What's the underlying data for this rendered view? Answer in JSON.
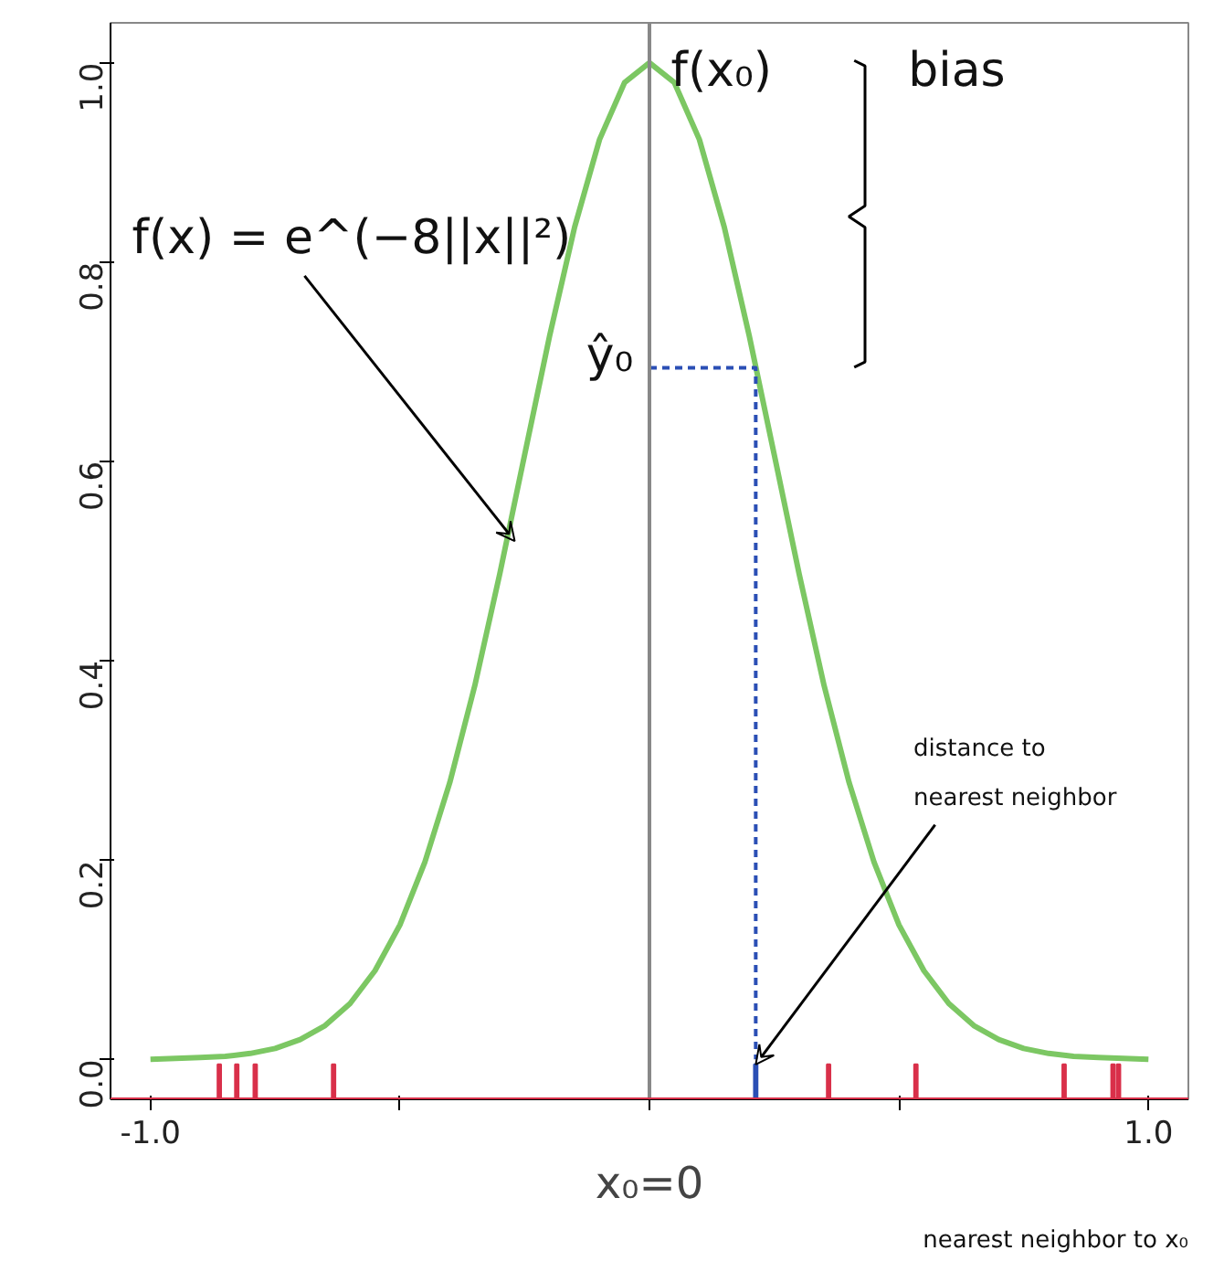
{
  "chart_data": {
    "type": "line",
    "xlabel": "x₀=0",
    "xlim": [
      -1.08,
      1.08
    ],
    "ylim": [
      -0.04,
      1.04
    ],
    "xticks": [
      {
        "value": -1,
        "label": "-1.0"
      },
      {
        "value": -0.5,
        "label": null
      },
      {
        "value": 0,
        "label": null
      },
      {
        "value": 0.5,
        "label": null
      },
      {
        "value": 1,
        "label": "1.0"
      }
    ],
    "yticks": [
      {
        "value": 0,
        "label": "0.0"
      },
      {
        "value": 0.2,
        "label": "0.2"
      },
      {
        "value": 0.4,
        "label": "0.4"
      },
      {
        "value": 0.6,
        "label": "0.6"
      },
      {
        "value": 0.8,
        "label": "0.8"
      },
      {
        "value": 1,
        "label": "1.0"
      }
    ],
    "grid": false,
    "series": [
      {
        "color": "#7cc763",
        "x": [
          -1,
          -0.95,
          -0.9,
          -0.85,
          -0.8,
          -0.75,
          -0.7,
          -0.65,
          -0.6,
          -0.55,
          -0.5,
          -0.45,
          -0.4,
          -0.35,
          -0.3,
          -0.25,
          -0.2,
          -0.15,
          -0.1,
          -0.05,
          0,
          0.05,
          0.1,
          0.15,
          0.2,
          0.25,
          0.3,
          0.35,
          0.4,
          0.45,
          0.5,
          0.55,
          0.6,
          0.65,
          0.7,
          0.75,
          0.8,
          0.85,
          0.9,
          0.95,
          1
        ],
        "values": [
          0.0,
          0.001,
          0.002,
          0.003,
          0.006,
          0.011,
          0.02,
          0.034,
          0.056,
          0.089,
          0.135,
          0.198,
          0.278,
          0.375,
          0.487,
          0.607,
          0.726,
          0.835,
          0.923,
          0.98,
          1.0,
          0.98,
          0.923,
          0.835,
          0.726,
          0.607,
          0.487,
          0.375,
          0.278,
          0.198,
          0.135,
          0.089,
          0.056,
          0.034,
          0.02,
          0.011,
          0.006,
          0.003,
          0.002,
          0.001,
          0.0
        ]
      },
      {
        "type": "line",
        "line_style": "dashed",
        "color": "#2b4fb5",
        "x": [
          0,
          0.213,
          0.213
        ],
        "values": [
          0.694,
          0.694,
          0.0
        ]
      },
      {
        "type": "bar",
        "color": "#d9304a",
        "colors": [
          "#d9304a",
          "#d9304a",
          "#d9304a",
          "#d9304a",
          "#2b4fb5",
          "#d9304a",
          "#d9304a",
          "#d9304a",
          "#d9304a",
          "#d9304a"
        ],
        "x": [
          -0.862,
          -0.827,
          -0.79,
          -0.633,
          0.213,
          0.359,
          0.534,
          0.831,
          0.929,
          0.94
        ],
        "base": [
          -0.04,
          -0.04,
          -0.04,
          -0.04,
          -0.04,
          -0.04,
          -0.04,
          -0.04,
          -0.04,
          -0.04
        ],
        "values": [
          0.035,
          0.035,
          0.035,
          0.035,
          0.035,
          0.035,
          0.035,
          0.035,
          0.035,
          0.035
        ]
      }
    ],
    "ref_lines": [
      {
        "axis": "x",
        "value": 0,
        "color": "#888888"
      },
      {
        "axis": "y",
        "value": -0.04,
        "color": "#d9304a"
      }
    ],
    "annotations": [
      {
        "text": "f(x) = e^(−8||x||²)",
        "x": -0.27,
        "y": 0.52
      },
      "f(x₀)",
      "bias",
      "ŷ₀",
      {
        "text": "distance to nearest neighbor",
        "x": 0.213,
        "y": -0.005
      },
      "nearest neighbor to x₀"
    ]
  }
}
